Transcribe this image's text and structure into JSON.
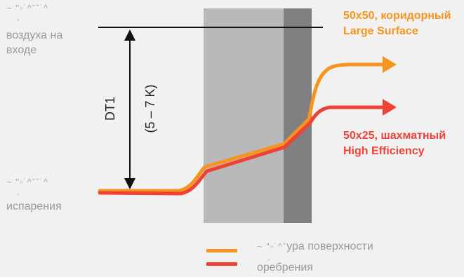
{
  "labels": {
    "inlet_line1": "~  \"◦˙^ˇˇ˙^",
    "inlet_line2": "¸",
    "inlet_line3": "воздуха на",
    "inlet_line4": "входе",
    "evap_line1": "~  \"◦˙^ˇˇ˙^",
    "evap_line2": "¸",
    "evap_line3": "испарения",
    "dt_label": "DT1",
    "dt_range": "(5 – 7 K)"
  },
  "series": [
    {
      "line1": "50x50, коридорный",
      "line2": "Large Surface",
      "color": "#f7941d"
    },
    {
      "line1": "50x25, шахматный",
      "line2": "High Efficiency",
      "color": "#ef4136"
    }
  ],
  "legend": {
    "line1_garbled": "~  \"◦˙^ˇ",
    "line1_rest": "ура поверхности",
    "line2_garbled": "¸",
    "line2_rest": "оребрения"
  },
  "colors": {
    "orange": "#f7941d",
    "red": "#ef4136",
    "fin_light": "#b9b9bb",
    "fin_dark": "#808083"
  }
}
